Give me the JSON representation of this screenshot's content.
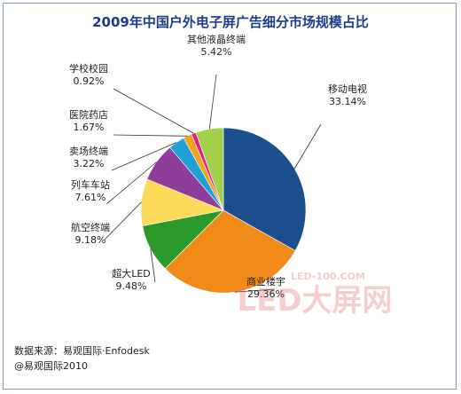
{
  "chart_data": {
    "type": "pie",
    "title": "2009年中国户外电子屏广告细分市场规模占比",
    "slices": [
      {
        "label": "移动电视",
        "value_label": "33.14%",
        "value": 33.14,
        "color": "#1a4e8c"
      },
      {
        "label": "商业楼宇",
        "value_label": "29.36%",
        "value": 29.36,
        "color": "#f28a1a"
      },
      {
        "label": "超大LED",
        "value_label": "9.48%",
        "value": 9.48,
        "color": "#2c9a2a"
      },
      {
        "label": "航空终端",
        "value_label": "9.18%",
        "value": 9.18,
        "color": "#fddb5a"
      },
      {
        "label": "列车车站",
        "value_label": "7.61%",
        "value": 7.61,
        "color": "#8e3d9a"
      },
      {
        "label": "卖场终端",
        "value_label": "3.22%",
        "value": 3.22,
        "color": "#1fa1d6"
      },
      {
        "label": "医院药店",
        "value_label": "1.67%",
        "value": 1.67,
        "color": "#f6a21a"
      },
      {
        "label": "学校校园",
        "value_label": "0.92%",
        "value": 0.92,
        "color": "#e0208a"
      },
      {
        "label": "其他液晶终端",
        "value_label": "5.42%",
        "value": 5.42,
        "color": "#a3d04a"
      }
    ]
  },
  "source": {
    "line1": "数据来源：易观国际·Enfodesk",
    "line2": "@易观国际2010"
  },
  "watermark": {
    "url": "LED-100.COM",
    "text": "LED大屏网"
  }
}
